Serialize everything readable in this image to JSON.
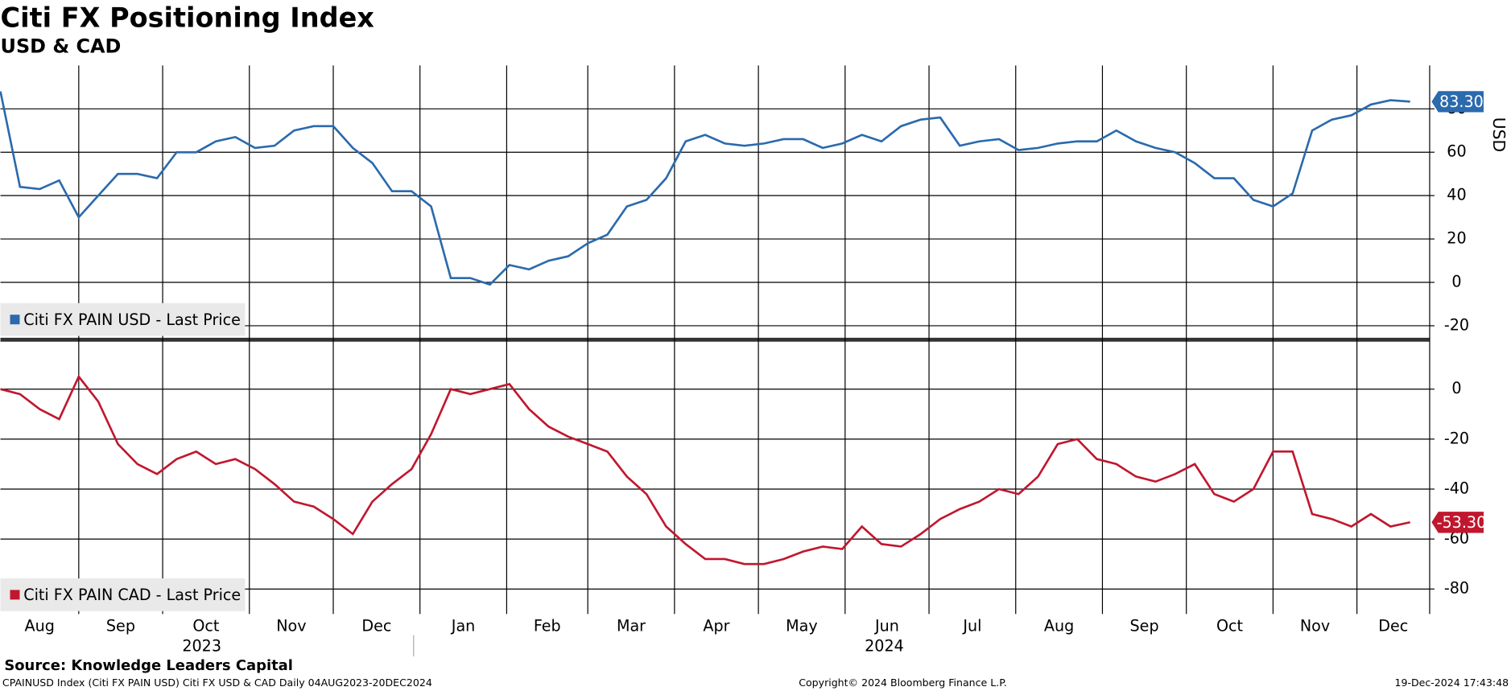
{
  "chart_data": {
    "type": "line",
    "title": "Citi FX Positioning Index",
    "subtitle": "USD & CAD",
    "x": [
      "2023-08-04",
      "2023-08-11",
      "2023-08-18",
      "2023-08-25",
      "2023-09-01",
      "2023-09-08",
      "2023-09-15",
      "2023-09-22",
      "2023-09-29",
      "2023-10-06",
      "2023-10-13",
      "2023-10-20",
      "2023-10-27",
      "2023-11-03",
      "2023-11-10",
      "2023-11-17",
      "2023-11-24",
      "2023-12-01",
      "2023-12-08",
      "2023-12-15",
      "2023-12-22",
      "2023-12-29",
      "2024-01-05",
      "2024-01-12",
      "2024-01-19",
      "2024-01-26",
      "2024-02-02",
      "2024-02-09",
      "2024-02-16",
      "2024-02-23",
      "2024-03-01",
      "2024-03-08",
      "2024-03-15",
      "2024-03-22",
      "2024-03-29",
      "2024-04-05",
      "2024-04-12",
      "2024-04-19",
      "2024-04-26",
      "2024-05-03",
      "2024-05-10",
      "2024-05-17",
      "2024-05-24",
      "2024-05-31",
      "2024-06-07",
      "2024-06-14",
      "2024-06-21",
      "2024-06-28",
      "2024-07-05",
      "2024-07-12",
      "2024-07-19",
      "2024-07-26",
      "2024-08-02",
      "2024-08-09",
      "2024-08-16",
      "2024-08-23",
      "2024-08-30",
      "2024-09-06",
      "2024-09-13",
      "2024-09-20",
      "2024-09-27",
      "2024-10-04",
      "2024-10-11",
      "2024-10-18",
      "2024-10-25",
      "2024-11-01",
      "2024-11-08",
      "2024-11-15",
      "2024-11-22",
      "2024-11-29",
      "2024-12-06",
      "2024-12-13",
      "2024-12-20"
    ],
    "xlim": [
      "2023-08-04",
      "2024-12-27"
    ],
    "xticks": [
      {
        "value": "2023-08-01",
        "label": "Aug"
      },
      {
        "value": "2023-09-01",
        "label": "Sep"
      },
      {
        "value": "2023-10-01",
        "label": "Oct"
      },
      {
        "value": "2023-11-01",
        "label": "Nov"
      },
      {
        "value": "2023-12-01",
        "label": "Dec"
      },
      {
        "value": "2024-01-01",
        "label": "Jan"
      },
      {
        "value": "2024-02-01",
        "label": "Feb"
      },
      {
        "value": "2024-03-01",
        "label": "Mar"
      },
      {
        "value": "2024-04-01",
        "label": "Apr"
      },
      {
        "value": "2024-05-01",
        "label": "May"
      },
      {
        "value": "2024-06-01",
        "label": "Jun"
      },
      {
        "value": "2024-07-01",
        "label": "Jul"
      },
      {
        "value": "2024-08-01",
        "label": "Aug"
      },
      {
        "value": "2024-09-01",
        "label": "Sep"
      },
      {
        "value": "2024-10-01",
        "label": "Oct"
      },
      {
        "value": "2024-11-01",
        "label": "Nov"
      },
      {
        "value": "2024-12-01",
        "label": "Dec"
      }
    ],
    "year_labels": [
      {
        "value": "2023-10-15",
        "label": "2023"
      },
      {
        "value": "2024-06-15",
        "label": "2024"
      }
    ],
    "panels": [
      {
        "ylim": [
          -26,
          100
        ],
        "yticks": [
          -20,
          0,
          20,
          40,
          60,
          80
        ],
        "y_label": "USD",
        "series": [
          {
            "name": "Citi FX PAIN USD - Last Price",
            "color": "#2a6aad",
            "last_value_label": "83.30",
            "values": [
              88,
              44,
              43,
              47,
              30,
              40,
              50,
              50,
              48,
              60,
              60,
              65,
              67,
              62,
              63,
              70,
              72,
              72,
              62,
              55,
              42,
              42,
              35,
              2,
              2,
              -1,
              8,
              6,
              10,
              12,
              18,
              22,
              35,
              38,
              48,
              65,
              68,
              64,
              63,
              64,
              66,
              66,
              62,
              64,
              68,
              65,
              72,
              75,
              76,
              63,
              65,
              66,
              61,
              62,
              64,
              65,
              65,
              70,
              65,
              62,
              60,
              55,
              48,
              48,
              38,
              35,
              41,
              70,
              75,
              77,
              82,
              84,
              83.3
            ]
          }
        ]
      },
      {
        "ylim": [
          -90,
          19
        ],
        "yticks": [
          -80,
          -60,
          -40,
          -20,
          0
        ],
        "series": [
          {
            "name": "Citi FX PAIN CAD - Last Price",
            "color": "#c0172e",
            "last_value_label": "-53.30",
            "values": [
              0,
              -2,
              -8,
              -12,
              5,
              -5,
              -22,
              -30,
              -34,
              -28,
              -25,
              -30,
              -28,
              -32,
              -38,
              -45,
              -47,
              -52,
              -58,
              -45,
              -38,
              -32,
              -18,
              0,
              -2,
              0,
              2,
              -8,
              -15,
              -19,
              -22,
              -25,
              -35,
              -42,
              -55,
              -62,
              -68,
              -68,
              -70,
              -70,
              -68,
              -65,
              -63,
              -64,
              -55,
              -62,
              -63,
              -58,
              -52,
              -48,
              -45,
              -40,
              -42,
              -35,
              -22,
              -20,
              -28,
              -30,
              -35,
              -37,
              -34,
              -30,
              -42,
              -45,
              -40,
              -25,
              -25,
              -50,
              -52,
              -55,
              -50,
              -55,
              -53.3
            ]
          }
        ]
      }
    ],
    "source": "Source: Knowledge Leaders Capital",
    "footer": [
      "CPAINUSD Index (Citi FX PAIN USD) Citi FX USD & CAD  Daily 04AUG2023-20DEC2024",
      "Copyright© 2024 Bloomberg Finance L.P.",
      "19-Dec-2024 17:43:48"
    ]
  }
}
